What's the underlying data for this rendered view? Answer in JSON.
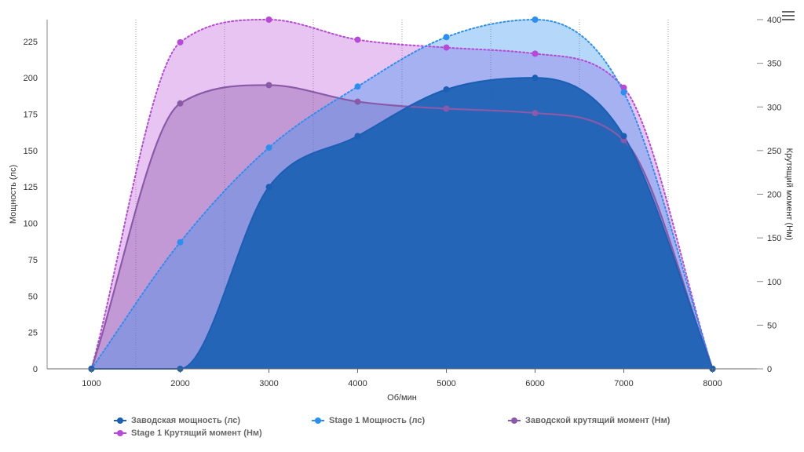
{
  "chart_data": {
    "type": "area",
    "x": [
      1000,
      2000,
      3000,
      4000,
      5000,
      6000,
      7000,
      8000
    ],
    "xlabel": "Об/мин",
    "ylabel_left": "Мощность (лс)",
    "ylabel_right": "Крутящий момент (Нм)",
    "x_ticks": [
      "1000",
      "2000",
      "3000",
      "4000",
      "5000",
      "6000",
      "7000",
      "8000"
    ],
    "y_left_ticks": [
      "0",
      "25",
      "50",
      "75",
      "100",
      "125",
      "150",
      "175",
      "200",
      "225"
    ],
    "y_right_ticks": [
      "0",
      "50",
      "100",
      "150",
      "200",
      "250",
      "300",
      "350",
      "400"
    ],
    "ylim_left": [
      0,
      240
    ],
    "ylim_right": [
      0,
      400
    ],
    "xlim": [
      500,
      8500
    ],
    "grid": "vertical dotted",
    "legend_position": "bottom",
    "series": [
      {
        "name": "Заводская мощность (лс)",
        "axis": "left",
        "color": "#1a5fb4",
        "values": [
          0,
          0,
          125,
          160,
          192,
          200,
          160,
          0
        ]
      },
      {
        "name": "Stage 1 Мощность (лс)",
        "axis": "left",
        "color": "#2b8ff0",
        "values": [
          0,
          87,
          152,
          194,
          228,
          240,
          190,
          0
        ]
      },
      {
        "name": "Заводской крутящий момент (Нм)",
        "axis": "right",
        "color": "#8a5aa8",
        "values": [
          0,
          304,
          325,
          306,
          298,
          293,
          262,
          0
        ]
      },
      {
        "name": "Stage 1 Крутящий момент (Нм)",
        "axis": "right",
        "color": "#b748d8",
        "values": [
          0,
          374,
          400,
          377,
          368,
          361,
          322,
          0
        ]
      }
    ]
  },
  "ui": {
    "menu_icon": "hamburger-menu-icon"
  }
}
